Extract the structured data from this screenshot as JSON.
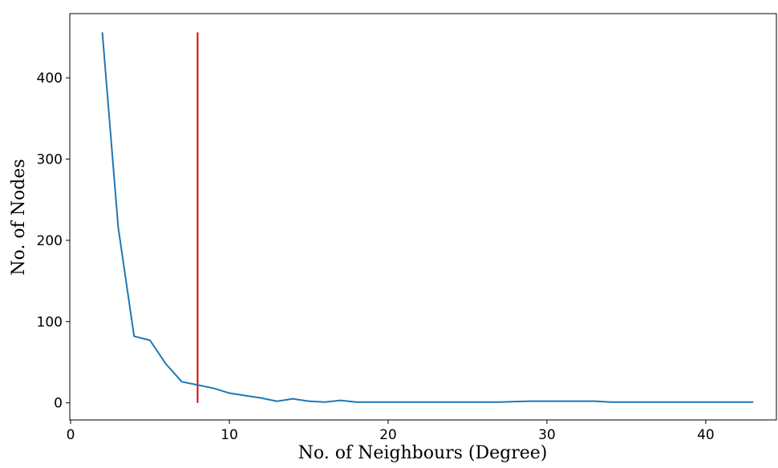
{
  "chart_data": {
    "type": "line",
    "x_label": "No. of Neighbours (Degree)",
    "y_label": "No. of Nodes",
    "x": [
      2,
      3,
      4,
      5,
      6,
      7,
      8,
      9,
      10,
      11,
      12,
      13,
      14,
      15,
      16,
      17,
      18,
      19,
      20,
      21,
      22,
      23,
      24,
      25,
      26,
      27,
      28,
      29,
      30,
      31,
      32,
      33,
      34,
      35,
      36,
      37,
      38,
      39,
      40,
      41,
      42,
      43
    ],
    "series": [
      {
        "color": "#1f77b4",
        "values": [
          456,
          216,
          82,
          77,
          48,
          26,
          22,
          18,
          12,
          9,
          6,
          2,
          5,
          2,
          1,
          3,
          1,
          1,
          1,
          1,
          1,
          1,
          1,
          1,
          1,
          1,
          1.5,
          2,
          2,
          2,
          2,
          2,
          1,
          1,
          1,
          1,
          1,
          1,
          1,
          1,
          1,
          1
        ]
      }
    ],
    "vline": {
      "x": 8,
      "ymin": 0,
      "ymax": 456,
      "color": "#e00000"
    },
    "xlim": [
      -0.05,
      44.45
    ],
    "ylim": [
      -21,
      479
    ],
    "xticks": [
      0,
      10,
      20,
      30,
      40
    ],
    "yticks": [
      0,
      100,
      200,
      300,
      400
    ]
  }
}
